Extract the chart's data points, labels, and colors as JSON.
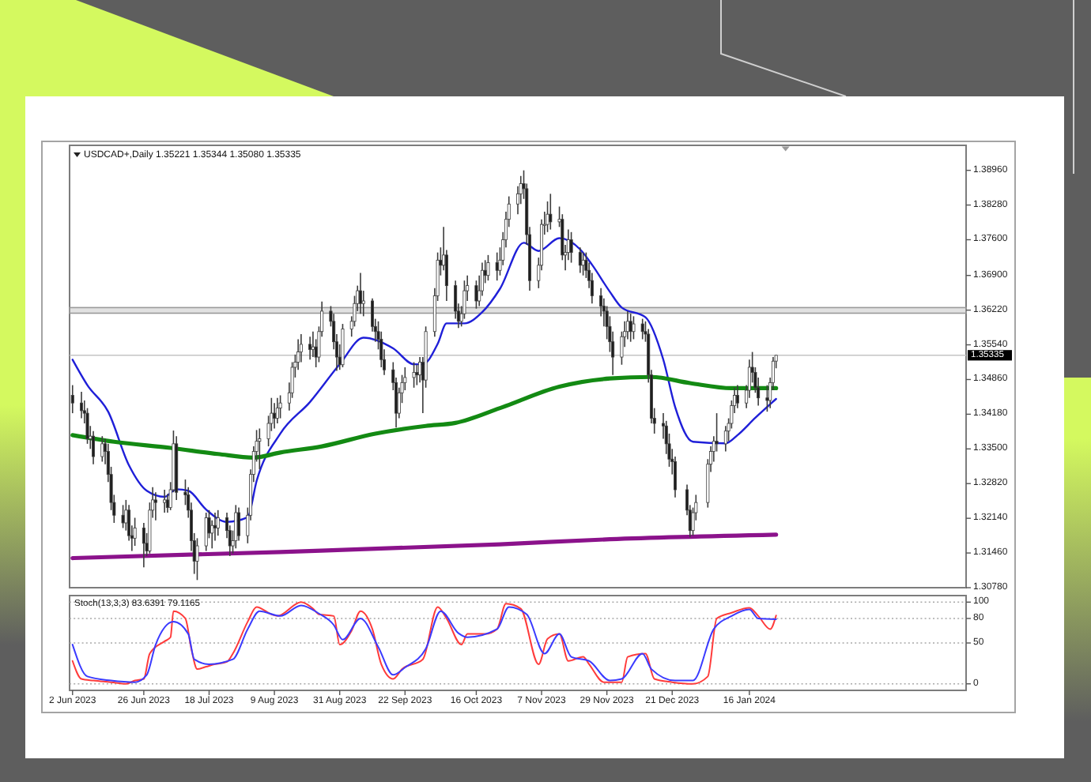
{
  "chart_data": [
    {
      "type": "candlestick",
      "title": "USDCAD+,Daily 1.35221 1.35344 1.35080 1.35335",
      "x": [
        "2023-06-02",
        "2023-06-05",
        "2023-06-06",
        "2023-06-07",
        "2023-06-08",
        "2023-06-09",
        "2023-06-12",
        "2023-06-13",
        "2023-06-14",
        "2023-06-15",
        "2023-06-16",
        "2023-06-19",
        "2023-06-20",
        "2023-06-21",
        "2023-06-22",
        "2023-06-23",
        "2023-06-26",
        "2023-06-27",
        "2023-06-28",
        "2023-06-29",
        "2023-06-30",
        "2023-07-03",
        "2023-07-04",
        "2023-07-05",
        "2023-07-06",
        "2023-07-07",
        "2023-07-10",
        "2023-07-11",
        "2023-07-12",
        "2023-07-13",
        "2023-07-14",
        "2023-07-17",
        "2023-07-18",
        "2023-07-19",
        "2023-07-20",
        "2023-07-21",
        "2023-07-24",
        "2023-07-25",
        "2023-07-26",
        "2023-07-27",
        "2023-07-28",
        "2023-07-31",
        "2023-08-01",
        "2023-08-02",
        "2023-08-03",
        "2023-08-04",
        "2023-08-07",
        "2023-08-08",
        "2023-08-09",
        "2023-08-10",
        "2023-08-11",
        "2023-08-14",
        "2023-08-15",
        "2023-08-16",
        "2023-08-17",
        "2023-08-18",
        "2023-08-21",
        "2023-08-22",
        "2023-08-23",
        "2023-08-24",
        "2023-08-25",
        "2023-08-28",
        "2023-08-29",
        "2023-08-30",
        "2023-08-31",
        "2023-09-01",
        "2023-09-04",
        "2023-09-05",
        "2023-09-06",
        "2023-09-07",
        "2023-09-08",
        "2023-09-11",
        "2023-09-12",
        "2023-09-13",
        "2023-09-14",
        "2023-09-15",
        "2023-09-18",
        "2023-09-19",
        "2023-09-20",
        "2023-09-21",
        "2023-09-22",
        "2023-09-25",
        "2023-09-26",
        "2023-09-27",
        "2023-09-28",
        "2023-09-29",
        "2023-10-02",
        "2023-10-03",
        "2023-10-04",
        "2023-10-05",
        "2023-10-06",
        "2023-10-09",
        "2023-10-10",
        "2023-10-11",
        "2023-10-12",
        "2023-10-13",
        "2023-10-16",
        "2023-10-17",
        "2023-10-18",
        "2023-10-19",
        "2023-10-20",
        "2023-10-23",
        "2023-10-24",
        "2023-10-25",
        "2023-10-26",
        "2023-10-27",
        "2023-10-30",
        "2023-10-31",
        "2023-11-01",
        "2023-11-02",
        "2023-11-03",
        "2023-11-06",
        "2023-11-07",
        "2023-11-08",
        "2023-11-09",
        "2023-11-10",
        "2023-11-13",
        "2023-11-14",
        "2023-11-15",
        "2023-11-16",
        "2023-11-17",
        "2023-11-20",
        "2023-11-21",
        "2023-11-22",
        "2023-11-23",
        "2023-11-24",
        "2023-11-27",
        "2023-11-28",
        "2023-11-29",
        "2023-11-30",
        "2023-12-01",
        "2023-12-04",
        "2023-12-05",
        "2023-12-06",
        "2023-12-07",
        "2023-12-08",
        "2023-12-11",
        "2023-12-12",
        "2023-12-13",
        "2023-12-14",
        "2023-12-15",
        "2023-12-18",
        "2023-12-19",
        "2023-12-20",
        "2023-12-21",
        "2023-12-22",
        "2023-12-26",
        "2023-12-27",
        "2023-12-28",
        "2023-12-29",
        "2024-01-02",
        "2024-01-03",
        "2024-01-04",
        "2024-01-05",
        "2024-01-08",
        "2024-01-09",
        "2024-01-10",
        "2024-01-11",
        "2024-01-12",
        "2024-01-15",
        "2024-01-16",
        "2024-01-17",
        "2024-01-18",
        "2024-01-19",
        "2024-01-22",
        "2024-01-23",
        "2024-01-24",
        "2024-01-25"
      ],
      "ohlc": [
        [
          1.3455,
          1.3475,
          1.342,
          1.344
        ],
        [
          1.344,
          1.3462,
          1.341,
          1.3425
        ],
        [
          1.3425,
          1.3445,
          1.34,
          1.342
        ],
        [
          1.342,
          1.343,
          1.336,
          1.337
        ],
        [
          1.337,
          1.3395,
          1.335,
          1.3375
        ],
        [
          1.3375,
          1.3385,
          1.332,
          1.3335
        ],
        [
          1.3335,
          1.3375,
          1.3325,
          1.336
        ],
        [
          1.336,
          1.337,
          1.332,
          1.3345
        ],
        [
          1.3345,
          1.336,
          1.3285,
          1.33
        ],
        [
          1.33,
          1.3315,
          1.323,
          1.3245
        ],
        [
          1.3245,
          1.326,
          1.3205,
          1.322
        ],
        [
          1.322,
          1.324,
          1.3195,
          1.3205
        ],
        [
          1.3205,
          1.325,
          1.319,
          1.323
        ],
        [
          1.323,
          1.324,
          1.317,
          1.318
        ],
        [
          1.318,
          1.32,
          1.315,
          1.3175
        ],
        [
          1.3175,
          1.3215,
          1.316,
          1.3195
        ],
        [
          1.3195,
          1.3205,
          1.3118,
          1.3165
        ],
        [
          1.3165,
          1.3185,
          1.314,
          1.315
        ],
        [
          1.315,
          1.3245,
          1.3145,
          1.323
        ],
        [
          1.323,
          1.3275,
          1.3215,
          1.325
        ],
        [
          1.325,
          1.3265,
          1.321,
          1.3245
        ],
        [
          1.3245,
          1.327,
          1.3225,
          1.325
        ],
        [
          1.325,
          1.3262,
          1.3225,
          1.3235
        ],
        [
          1.3235,
          1.3285,
          1.323,
          1.327
        ],
        [
          1.327,
          1.3386,
          1.3265,
          1.336
        ],
        [
          1.336,
          1.3375,
          1.325,
          1.3265
        ],
        [
          1.3265,
          1.329,
          1.324,
          1.326
        ],
        [
          1.326,
          1.3275,
          1.3215,
          1.323
        ],
        [
          1.323,
          1.3245,
          1.315,
          1.317
        ],
        [
          1.317,
          1.3185,
          1.3105,
          1.313
        ],
        [
          1.313,
          1.3175,
          1.3093,
          1.316
        ],
        [
          1.316,
          1.3225,
          1.315,
          1.3215
        ],
        [
          1.3215,
          1.323,
          1.3175,
          1.3185
        ],
        [
          1.3185,
          1.321,
          1.3155,
          1.32
        ],
        [
          1.32,
          1.3225,
          1.317,
          1.3195
        ],
        [
          1.3195,
          1.323,
          1.318,
          1.3215
        ],
        [
          1.3215,
          1.3225,
          1.3175,
          1.319
        ],
        [
          1.319,
          1.32,
          1.314,
          1.316
        ],
        [
          1.316,
          1.319,
          1.3145,
          1.317
        ],
        [
          1.317,
          1.324,
          1.3155,
          1.3225
        ],
        [
          1.3225,
          1.3235,
          1.317,
          1.318
        ],
        [
          1.318,
          1.3235,
          1.3165,
          1.322
        ],
        [
          1.322,
          1.331,
          1.321,
          1.33
        ],
        [
          1.33,
          1.3355,
          1.3285,
          1.3345
        ],
        [
          1.3345,
          1.3387,
          1.3325,
          1.3365
        ],
        [
          1.3365,
          1.339,
          1.331,
          1.337
        ],
        [
          1.337,
          1.3415,
          1.3355,
          1.34
        ],
        [
          1.34,
          1.345,
          1.3385,
          1.342
        ],
        [
          1.342,
          1.344,
          1.339,
          1.341
        ],
        [
          1.341,
          1.345,
          1.34,
          1.343
        ],
        [
          1.343,
          1.3455,
          1.341,
          1.344
        ],
        [
          1.344,
          1.348,
          1.3425,
          1.346
        ],
        [
          1.346,
          1.352,
          1.345,
          1.351
        ],
        [
          1.351,
          1.3535,
          1.349,
          1.352
        ],
        [
          1.352,
          1.3565,
          1.3505,
          1.354
        ],
        [
          1.354,
          1.3575,
          1.352,
          1.3555
        ],
        [
          1.3555,
          1.357,
          1.3525,
          1.3545
        ],
        [
          1.3545,
          1.358,
          1.353,
          1.355
        ],
        [
          1.355,
          1.3565,
          1.351,
          1.353
        ],
        [
          1.353,
          1.359,
          1.352,
          1.358
        ],
        [
          1.358,
          1.3639,
          1.357,
          1.362
        ],
        [
          1.362,
          1.363,
          1.359,
          1.36
        ],
        [
          1.36,
          1.3615,
          1.3545,
          1.356
        ],
        [
          1.356,
          1.3575,
          1.3503,
          1.353
        ],
        [
          1.353,
          1.3555,
          1.3505,
          1.3515
        ],
        [
          1.3515,
          1.3595,
          1.351,
          1.3585
        ],
        [
          1.3585,
          1.361,
          1.357,
          1.36
        ],
        [
          1.36,
          1.365,
          1.359,
          1.3635
        ],
        [
          1.3635,
          1.367,
          1.362,
          1.366
        ],
        [
          1.366,
          1.3695,
          1.3615,
          1.3635
        ],
        [
          1.3635,
          1.366,
          1.361,
          1.364
        ],
        [
          1.364,
          1.3645,
          1.358,
          1.359
        ],
        [
          1.359,
          1.3605,
          1.356,
          1.358
        ],
        [
          1.358,
          1.36,
          1.3545,
          1.3565
        ],
        [
          1.3565,
          1.358,
          1.351,
          1.3525
        ],
        [
          1.3525,
          1.3545,
          1.3495,
          1.3505
        ],
        [
          1.3505,
          1.352,
          1.3465,
          1.348
        ],
        [
          1.348,
          1.349,
          1.3392,
          1.342
        ],
        [
          1.342,
          1.347,
          1.341,
          1.346
        ],
        [
          1.346,
          1.3495,
          1.344,
          1.348
        ],
        [
          1.348,
          1.351,
          1.3465,
          1.349
        ],
        [
          1.349,
          1.352,
          1.347,
          1.35
        ],
        [
          1.35,
          1.3515,
          1.3475,
          1.3495
        ],
        [
          1.3495,
          1.353,
          1.348,
          1.352
        ],
        [
          1.352,
          1.353,
          1.342,
          1.3485
        ],
        [
          1.3485,
          1.359,
          1.347,
          1.358
        ],
        [
          1.358,
          1.3665,
          1.357,
          1.365
        ],
        [
          1.365,
          1.3735,
          1.364,
          1.372
        ],
        [
          1.372,
          1.3745,
          1.369,
          1.371
        ],
        [
          1.371,
          1.3785,
          1.37,
          1.373
        ],
        [
          1.373,
          1.374,
          1.364,
          1.367
        ],
        [
          1.367,
          1.368,
          1.3605,
          1.362
        ],
        [
          1.362,
          1.3635,
          1.3587,
          1.36
        ],
        [
          1.36,
          1.363,
          1.359,
          1.3615
        ],
        [
          1.3615,
          1.368,
          1.3605,
          1.366
        ],
        [
          1.366,
          1.369,
          1.364,
          1.367
        ],
        [
          1.367,
          1.368,
          1.3625,
          1.364
        ],
        [
          1.364,
          1.369,
          1.363,
          1.366
        ],
        [
          1.366,
          1.3715,
          1.365,
          1.37
        ],
        [
          1.37,
          1.372,
          1.3675,
          1.369
        ],
        [
          1.369,
          1.373,
          1.368,
          1.3715
        ],
        [
          1.3715,
          1.3735,
          1.368,
          1.37
        ],
        [
          1.37,
          1.3745,
          1.369,
          1.372
        ],
        [
          1.372,
          1.3775,
          1.371,
          1.376
        ],
        [
          1.376,
          1.3815,
          1.3745,
          1.38
        ],
        [
          1.38,
          1.3845,
          1.3785,
          1.383
        ],
        [
          1.383,
          1.3865,
          1.381,
          1.385
        ],
        [
          1.385,
          1.3885,
          1.383,
          1.387
        ],
        [
          1.387,
          1.3896,
          1.384,
          1.386
        ],
        [
          1.386,
          1.387,
          1.375,
          1.377
        ],
        [
          1.377,
          1.3785,
          1.366,
          1.368
        ],
        [
          1.368,
          1.3725,
          1.3665,
          1.371
        ],
        [
          1.371,
          1.38,
          1.37,
          1.379
        ],
        [
          1.379,
          1.3815,
          1.377,
          1.379
        ],
        [
          1.379,
          1.3835,
          1.3775,
          1.381
        ],
        [
          1.381,
          1.385,
          1.378,
          1.3795
        ],
        [
          1.3795,
          1.3825,
          1.3785,
          1.38
        ],
        [
          1.38,
          1.381,
          1.372,
          1.373
        ],
        [
          1.373,
          1.375,
          1.37,
          1.3735
        ],
        [
          1.3735,
          1.378,
          1.372,
          1.376
        ],
        [
          1.376,
          1.3775,
          1.3715,
          1.3735
        ],
        [
          1.3735,
          1.3745,
          1.3695,
          1.371
        ],
        [
          1.371,
          1.3735,
          1.369,
          1.372
        ],
        [
          1.372,
          1.3735,
          1.3685,
          1.37
        ],
        [
          1.37,
          1.3715,
          1.3665,
          1.368
        ],
        [
          1.368,
          1.3695,
          1.3635,
          1.365
        ],
        [
          1.365,
          1.3665,
          1.361,
          1.363
        ],
        [
          1.363,
          1.3645,
          1.359,
          1.362
        ],
        [
          1.362,
          1.363,
          1.3565,
          1.359
        ],
        [
          1.359,
          1.361,
          1.354,
          1.356
        ],
        [
          1.356,
          1.358,
          1.3495,
          1.353
        ],
        [
          1.353,
          1.358,
          1.3515,
          1.357
        ],
        [
          1.357,
          1.36,
          1.355,
          1.358
        ],
        [
          1.358,
          1.362,
          1.3565,
          1.36
        ],
        [
          1.36,
          1.3615,
          1.356,
          1.358
        ],
        [
          1.358,
          1.361,
          1.3565,
          1.3595
        ],
        [
          1.3595,
          1.3605,
          1.3565,
          1.358
        ],
        [
          1.358,
          1.36,
          1.356,
          1.3575
        ],
        [
          1.3575,
          1.3585,
          1.348,
          1.3495
        ],
        [
          1.3495,
          1.3505,
          1.34,
          1.341
        ],
        [
          1.341,
          1.343,
          1.338,
          1.34
        ],
        [
          1.34,
          1.342,
          1.337,
          1.3395
        ],
        [
          1.3395,
          1.3405,
          1.334,
          1.336
        ],
        [
          1.336,
          1.338,
          1.3315,
          1.333
        ],
        [
          1.333,
          1.335,
          1.33,
          1.3325
        ],
        [
          1.3325,
          1.3335,
          1.3255,
          1.327
        ],
        [
          1.327,
          1.328,
          1.322,
          1.323
        ],
        [
          1.323,
          1.324,
          1.3177,
          1.319
        ],
        [
          1.319,
          1.3235,
          1.318,
          1.3225
        ],
        [
          1.3225,
          1.326,
          1.321,
          1.3245
        ],
        [
          1.3245,
          1.333,
          1.3235,
          1.332
        ],
        [
          1.332,
          1.3355,
          1.3305,
          1.3345
        ],
        [
          1.3345,
          1.3375,
          1.3325,
          1.3365
        ],
        [
          1.3365,
          1.342,
          1.3345,
          1.336
        ],
        [
          1.336,
          1.3395,
          1.3345,
          1.3385
        ],
        [
          1.3385,
          1.341,
          1.3365,
          1.34
        ],
        [
          1.34,
          1.3445,
          1.339,
          1.3435
        ],
        [
          1.3435,
          1.347,
          1.342,
          1.3455
        ],
        [
          1.3455,
          1.3475,
          1.343,
          1.344
        ],
        [
          1.344,
          1.3475,
          1.343,
          1.3465
        ],
        [
          1.3465,
          1.3525,
          1.345,
          1.351
        ],
        [
          1.351,
          1.354,
          1.348,
          1.35
        ],
        [
          1.35,
          1.351,
          1.346,
          1.347
        ],
        [
          1.347,
          1.349,
          1.3435,
          1.345
        ],
        [
          1.345,
          1.3475,
          1.3423,
          1.3445
        ],
        [
          1.3445,
          1.349,
          1.343,
          1.348
        ],
        [
          1.348,
          1.353,
          1.3465,
          1.3522
        ],
        [
          1.35221,
          1.35344,
          1.3508,
          1.35335
        ]
      ],
      "xlim": [
        "2023-06-01",
        "2024-03-29"
      ],
      "ylim": [
        1.3078,
        1.3945
      ],
      "yticks": [
        {
          "value": 1.3896,
          "label": "1.38960"
        },
        {
          "value": 1.3828,
          "label": "1.38280"
        },
        {
          "value": 1.376,
          "label": "1.37600"
        },
        {
          "value": 1.369,
          "label": "1.36900"
        },
        {
          "value": 1.3622,
          "label": "1.36220"
        },
        {
          "value": 1.3554,
          "label": "1.35540"
        },
        {
          "value": 1.3486,
          "label": "1.34860"
        },
        {
          "value": 1.3418,
          "label": "1.34180"
        },
        {
          "value": 1.335,
          "label": "1.33500"
        },
        {
          "value": 1.3282,
          "label": "1.32820"
        },
        {
          "value": 1.3214,
          "label": "1.32140"
        },
        {
          "value": 1.3146,
          "label": "1.31460"
        },
        {
          "value": 1.3078,
          "label": "1.30780"
        }
      ],
      "tick_labels": "y",
      "series": [
        {
          "type": "line",
          "color": "#1f1fd8",
          "x": [
            "2023-06-02",
            "2023-06-07",
            "2023-06-14",
            "2023-06-21",
            "2023-06-27",
            "2023-07-03",
            "2023-07-07",
            "2023-07-11",
            "2023-07-17",
            "2023-07-24",
            "2023-07-31",
            "2023-08-03",
            "2023-08-11",
            "2023-08-21",
            "2023-08-31",
            "2023-09-08",
            "2023-09-18",
            "2023-09-25",
            "2023-09-28",
            "2023-10-03",
            "2023-10-06",
            "2023-10-12",
            "2023-10-18",
            "2023-10-24",
            "2023-11-01",
            "2023-11-06",
            "2023-11-13",
            "2023-11-20",
            "2023-11-24",
            "2023-11-30",
            "2023-12-04",
            "2023-12-12",
            "2023-12-18",
            "2023-12-22",
            "2023-12-28",
            "2024-01-08",
            "2024-01-12",
            "2024-01-18",
            "2024-01-25"
          ],
          "values": [
            1.3525,
            1.3475,
            1.3423,
            1.3318,
            1.3268,
            1.3256,
            1.3271,
            1.3268,
            1.3231,
            1.3207,
            1.3216,
            1.3287,
            1.338,
            1.3442,
            1.3516,
            1.3568,
            1.3547,
            1.3516,
            1.3516,
            1.3556,
            1.3596,
            1.3596,
            1.3618,
            1.3664,
            1.3754,
            1.3738,
            1.3763,
            1.3741,
            1.3711,
            1.3658,
            1.3627,
            1.3608,
            1.3525,
            1.3432,
            1.3364,
            1.3361,
            1.3377,
            1.3411,
            1.3448
          ]
        },
        {
          "type": "line",
          "color": "#138a13",
          "x": [
            "2023-06-02",
            "2023-06-16",
            "2023-07-05",
            "2023-07-21",
            "2023-08-02",
            "2023-08-11",
            "2023-08-25",
            "2023-09-12",
            "2023-09-29",
            "2023-10-09",
            "2023-10-24",
            "2023-11-13",
            "2023-11-30",
            "2023-12-14",
            "2023-12-27",
            "2024-01-10",
            "2024-01-25"
          ],
          "values": [
            1.3377,
            1.3364,
            1.3352,
            1.334,
            1.3333,
            1.3343,
            1.3355,
            1.338,
            1.3395,
            1.3401,
            1.343,
            1.3472,
            1.3488,
            1.3491,
            1.3479,
            1.3469,
            1.3469
          ]
        },
        {
          "type": "line",
          "color": "#8b128b",
          "x": [
            "2023-06-02",
            "2023-08-11",
            "2023-10-24",
            "2023-11-30",
            "2024-01-25"
          ],
          "values": [
            1.3136,
            1.3148,
            1.3163,
            1.3173,
            1.3182
          ]
        }
      ],
      "ref_lines": [
        {
          "axis": "y",
          "value": 1.35335,
          "label": "1.35335",
          "color": "#c4c4c4"
        }
      ],
      "bands": [
        {
          "axis": "y",
          "from": 1.3616,
          "to": 1.3627,
          "color": "#9a9a9a"
        }
      ]
    },
    {
      "type": "line",
      "title": "Stoch(13,3,3) 83.6391 79.1165",
      "xlim": [
        "2023-06-01",
        "2024-03-29"
      ],
      "xticks": [
        {
          "value": "2023-06-02",
          "label": "2 Jun 2023"
        },
        {
          "value": "2023-06-26",
          "label": "26 Jun 2023"
        },
        {
          "value": "2023-07-18",
          "label": "18 Jul 2023"
        },
        {
          "value": "2023-08-09",
          "label": "9 Aug 2023"
        },
        {
          "value": "2023-08-31",
          "label": "31 Aug 2023"
        },
        {
          "value": "2023-09-22",
          "label": "22 Sep 2023"
        },
        {
          "value": "2023-10-16",
          "label": "16 Oct 2023"
        },
        {
          "value": "2023-11-07",
          "label": "7 Nov 2023"
        },
        {
          "value": "2023-11-29",
          "label": "29 Nov 2023"
        },
        {
          "value": "2023-12-21",
          "label": "21 Dec 2023"
        },
        {
          "value": "2024-01-16",
          "label": "16 Jan 2024"
        }
      ],
      "ylim": [
        -8,
        108
      ],
      "yticks": [
        0,
        50,
        80,
        100
      ],
      "grid": "y",
      "series": [
        {
          "color": "#ff3b3b",
          "x": [
            "2023-06-02",
            "2023-06-05",
            "2023-06-09",
            "2023-06-15",
            "2023-06-20",
            "2023-06-23",
            "2023-06-26",
            "2023-06-28",
            "2023-07-03",
            "2023-07-05",
            "2023-07-06",
            "2023-07-10",
            "2023-07-12",
            "2023-07-14",
            "2023-07-17",
            "2023-07-20",
            "2023-07-24",
            "2023-07-26",
            "2023-07-31",
            "2023-08-03",
            "2023-08-08",
            "2023-08-10",
            "2023-08-18",
            "2023-08-22",
            "2023-08-24",
            "2023-08-29",
            "2023-08-31",
            "2023-09-04",
            "2023-09-07",
            "2023-09-11",
            "2023-09-14",
            "2023-09-18",
            "2023-09-21",
            "2023-09-28",
            "2023-10-03",
            "2023-10-06",
            "2023-10-11",
            "2023-10-13",
            "2023-10-19",
            "2023-10-23",
            "2023-10-26",
            "2023-10-31",
            "2023-11-06",
            "2023-11-09",
            "2023-11-13",
            "2023-11-16",
            "2023-11-21",
            "2023-11-23",
            "2023-11-28",
            "2023-12-04",
            "2023-12-06",
            "2023-12-12",
            "2023-12-15",
            "2023-12-21",
            "2023-12-28",
            "2024-01-02",
            "2024-01-05",
            "2024-01-10",
            "2024-01-16",
            "2024-01-19",
            "2024-01-23",
            "2024-01-25"
          ],
          "values": [
            28,
            6,
            4,
            2,
            0,
            4,
            6,
            37,
            52,
            57,
            89,
            80,
            43,
            18,
            21,
            24,
            27,
            37,
            76,
            94,
            85,
            83,
            100,
            92,
            85,
            83,
            48,
            65,
            89,
            67,
            24,
            6,
            18,
            30,
            94,
            80,
            48,
            61,
            61,
            67,
            98,
            92,
            24,
            55,
            61,
            28,
            33,
            24,
            2,
            2,
            33,
            37,
            6,
            2,
            0,
            9,
            80,
            87,
            93,
            83,
            67,
            83.6391
          ]
        },
        {
          "color": "#3b3bff",
          "x": [
            "2023-06-02",
            "2023-06-07",
            "2023-06-15",
            "2023-06-23",
            "2023-06-27",
            "2023-06-30",
            "2023-07-06",
            "2023-07-11",
            "2023-07-13",
            "2023-07-18",
            "2023-07-26",
            "2023-07-31",
            "2023-08-04",
            "2023-08-11",
            "2023-08-18",
            "2023-08-24",
            "2023-08-29",
            "2023-09-01",
            "2023-09-07",
            "2023-09-13",
            "2023-09-18",
            "2023-09-22",
            "2023-09-29",
            "2023-10-04",
            "2023-10-10",
            "2023-10-13",
            "2023-10-23",
            "2023-10-27",
            "2023-11-02",
            "2023-11-08",
            "2023-11-13",
            "2023-11-17",
            "2023-11-23",
            "2023-11-30",
            "2023-12-04",
            "2023-12-11",
            "2023-12-14",
            "2023-12-22",
            "2023-12-28",
            "2024-01-04",
            "2024-01-10",
            "2024-01-16",
            "2024-01-19",
            "2024-01-25"
          ],
          "values": [
            48,
            9,
            4,
            2,
            11,
            48,
            76,
            61,
            30,
            24,
            30,
            67,
            89,
            83,
            96,
            86,
            72,
            54,
            80,
            45,
            11,
            20,
            43,
            89,
            62,
            57,
            67,
            94,
            85,
            37,
            61,
            33,
            28,
            4,
            6,
            37,
            18,
            4,
            4,
            67,
            83,
            91,
            80,
            79.1165
          ]
        }
      ]
    }
  ]
}
